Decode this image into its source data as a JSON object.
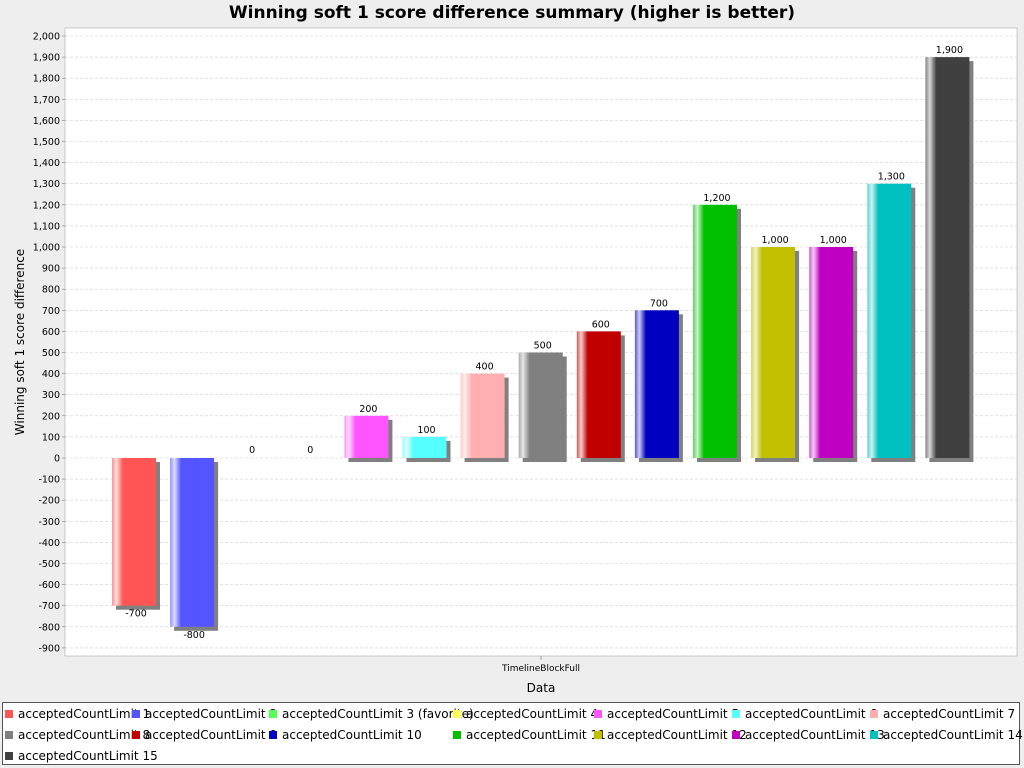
{
  "chart_data": {
    "type": "bar",
    "title": "Winning soft 1 score difference summary (higher is better)",
    "xlabel": "Data",
    "ylabel": "Winning soft 1 score difference",
    "categories": [
      "TimelineBlockFull"
    ],
    "ylim": [
      -950,
      2050
    ],
    "yticks": [
      2000,
      1900,
      1800,
      1700,
      1600,
      1500,
      1400,
      1300,
      1200,
      1100,
      1000,
      900,
      800,
      700,
      600,
      500,
      400,
      300,
      200,
      100,
      0,
      -100,
      -200,
      -300,
      -400,
      -500,
      -600,
      -700,
      -800,
      -900
    ],
    "ytick_labels": [
      "2,000",
      "1,900",
      "1,800",
      "1,700",
      "1,600",
      "1,500",
      "1,400",
      "1,300",
      "1,200",
      "1,100",
      "1,000",
      "900",
      "800",
      "700",
      "600",
      "500",
      "400",
      "300",
      "200",
      "100",
      "0",
      "-100",
      "-200",
      "-300",
      "-400",
      "-500",
      "-600",
      "-700",
      "-800",
      "-900"
    ],
    "grid": true,
    "legend_position": "bottom",
    "series": [
      {
        "name": "acceptedCountLimit 1",
        "values": [
          -700
        ],
        "label": "-700",
        "color": "#ff5555"
      },
      {
        "name": "acceptedCountLimit 2",
        "values": [
          -800
        ],
        "label": "-800",
        "color": "#5555ff"
      },
      {
        "name": "acceptedCountLimit 3 (favorite)",
        "values": [
          0
        ],
        "label": "0",
        "color": "#55ff55"
      },
      {
        "name": "acceptedCountLimit 4",
        "values": [
          0
        ],
        "label": "0",
        "color": "#ffff55"
      },
      {
        "name": "acceptedCountLimit 5",
        "values": [
          200
        ],
        "label": "200",
        "color": "#ff55ff"
      },
      {
        "name": "acceptedCountLimit 6",
        "values": [
          100
        ],
        "label": "100",
        "color": "#55ffff"
      },
      {
        "name": "acceptedCountLimit 7",
        "values": [
          400
        ],
        "label": "400",
        "color": "#ffafaf"
      },
      {
        "name": "acceptedCountLimit 8",
        "values": [
          500
        ],
        "label": "500",
        "color": "#808080"
      },
      {
        "name": "acceptedCountLimit 9",
        "values": [
          600
        ],
        "label": "600",
        "color": "#c00000"
      },
      {
        "name": "acceptedCountLimit 10",
        "values": [
          700
        ],
        "label": "700",
        "color": "#0000c0"
      },
      {
        "name": "acceptedCountLimit 11",
        "values": [
          1200
        ],
        "label": "1,200",
        "color": "#00c000"
      },
      {
        "name": "acceptedCountLimit 12",
        "values": [
          1000
        ],
        "label": "1,000",
        "color": "#c0c000"
      },
      {
        "name": "acceptedCountLimit 13",
        "values": [
          1000
        ],
        "label": "1,000",
        "color": "#c000c0"
      },
      {
        "name": "acceptedCountLimit 14",
        "values": [
          1300
        ],
        "label": "1,300",
        "color": "#00c0c0"
      },
      {
        "name": "acceptedCountLimit 15",
        "values": [
          1900
        ],
        "label": "1,900",
        "color": "#404040"
      }
    ]
  }
}
